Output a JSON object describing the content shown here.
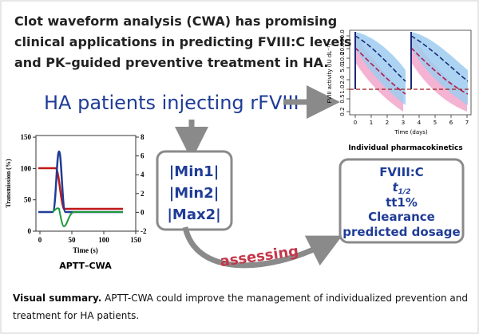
{
  "headline": {
    "bold": "Clot waveform analysis (CWA)",
    "lines": [
      " has promising",
      "clinical applications in predicting FVIII:C levels",
      "and PK–guided preventive treatment in HA."
    ]
  },
  "patients": "HA patients injecting rFVIII",
  "pk_chart": {
    "ylabel": "FVIII activity (IU dL⁻¹)",
    "xlabel": "Time (days)",
    "yticks": [
      "0.2",
      "0.5",
      "1.0",
      "2.0",
      "5.0",
      "10.0",
      "20.0",
      "50.0"
    ],
    "xticks": [
      "0",
      "1",
      "2",
      "3",
      "4",
      "5",
      "6",
      "7"
    ],
    "caption": "Individual pharmacokinetics"
  },
  "cwa_chart": {
    "ylabel": "Transmission (%)",
    "xlabel": "Time (s)",
    "yticks": [
      "0",
      "50",
      "100",
      "150"
    ],
    "y2ticks": [
      "-2",
      "0",
      "2",
      "4",
      "6",
      "8"
    ],
    "xticks": [
      "0",
      "50",
      "100",
      "150"
    ],
    "caption": "APTT–CWA"
  },
  "parameters": [
    "|Min1|",
    "|Min2|",
    "|Max2|"
  ],
  "arrow_label": "assessing",
  "outcomes": {
    "fviii": "FVIII:C",
    "half_life": {
      "base": "t",
      "sub": "1/2"
    },
    "tt1": "tt1%",
    "clearance": "Clearance",
    "dosage": "predicted dosage"
  },
  "summary": {
    "bold": "Visual summary.",
    "lines": [
      " APTT-CWA  could  improve the management of individualized prevention and",
      "treatment for HA patients."
    ]
  }
}
